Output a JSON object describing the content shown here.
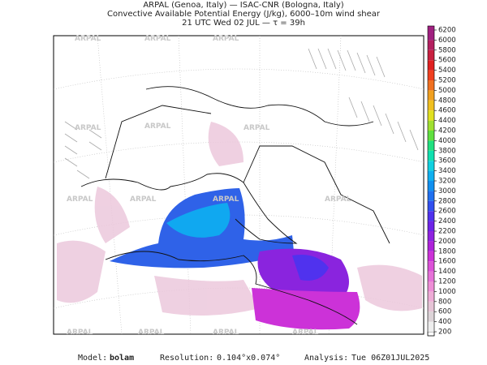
{
  "header": {
    "line1": "ARPAL (Genoa, Italy)  —  ISAC-CNR (Bologna, Italy)",
    "line2": "Convective Available Potential Energy (J/kg), 6000–10m wind shear",
    "line3": "21 UTC Wed 02 JUL  —  τ = 39h"
  },
  "watermark": "ARPAL",
  "colorbar": {
    "ticks": [
      200,
      400,
      600,
      800,
      1000,
      1200,
      1400,
      1600,
      1800,
      2000,
      2200,
      2400,
      2600,
      2800,
      3000,
      3200,
      3400,
      3600,
      3800,
      4000,
      4200,
      4400,
      4600,
      4800,
      5000,
      5200,
      5400,
      5600,
      5800,
      6000,
      6200
    ],
    "colors": [
      "#eeeeee",
      "#ddd4d8",
      "#e6c4d6",
      "#eeacd6",
      "#ee8ed6",
      "#e672d8",
      "#dc52d8",
      "#cc32d8",
      "#ae22da",
      "#8e22e0",
      "#6e24e8",
      "#5032ee",
      "#3250f0",
      "#2070f0",
      "#1090f0",
      "#10b0f0",
      "#10d0e0",
      "#10e0b0",
      "#20e080",
      "#60e040",
      "#a0e030",
      "#e0e020",
      "#f0c020",
      "#f0a020",
      "#f07020",
      "#f04020",
      "#e02020",
      "#c82040",
      "#b42060",
      "#a02080"
    ]
  },
  "footer": {
    "model_label": "Model:",
    "model": "bolam",
    "resolution_label": "Resolution:",
    "resolution": "0.104°x0.074°",
    "analysis_label": "Analysis:",
    "analysis": "Tue 06Z01JUL2025"
  }
}
